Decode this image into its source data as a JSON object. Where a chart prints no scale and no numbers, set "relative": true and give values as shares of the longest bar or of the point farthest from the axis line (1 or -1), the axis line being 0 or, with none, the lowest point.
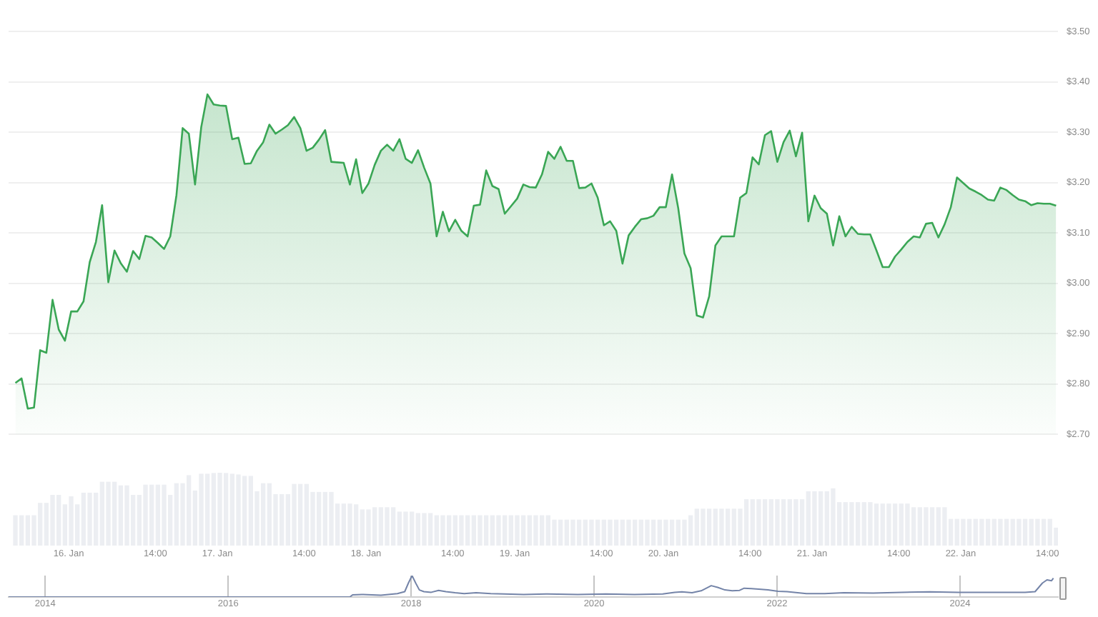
{
  "chart_data": [
    {
      "type": "area",
      "color": "#3aa655",
      "x": [
        "--01-15T15:24",
        "--01-15T16:24",
        "--01-15T17:24",
        "--01-15T18:24",
        "--01-15T19:24",
        "--01-15T20:24",
        "--01-15T21:24",
        "--01-15T22:24",
        "--01-15T23:24",
        "--01-16T00:24",
        "--01-16T01:24",
        "--01-16T02:24",
        "--01-16T03:24",
        "--01-16T04:24",
        "--01-16T05:24",
        "--01-16T06:24",
        "--01-16T07:24",
        "--01-16T08:24",
        "--01-16T09:24",
        "--01-16T10:24",
        "--01-16T11:24",
        "--01-16T12:24",
        "--01-16T13:24",
        "--01-16T14:24",
        "--01-16T15:24",
        "--01-16T16:24",
        "--01-16T17:24",
        "--01-16T18:24",
        "--01-16T19:24",
        "--01-16T20:24",
        "--01-16T21:24",
        "--01-16T22:24",
        "--01-16T23:24",
        "--01-17T00:24",
        "--01-17T01:24",
        "--01-17T02:24",
        "--01-17T03:24",
        "--01-17T04:24",
        "--01-17T05:24",
        "--01-17T06:24",
        "--01-17T07:24",
        "--01-17T08:24",
        "--01-17T09:24",
        "--01-17T10:24",
        "--01-17T11:24",
        "--01-17T12:24",
        "--01-17T13:24",
        "--01-17T14:24",
        "--01-17T15:24",
        "--01-17T16:24",
        "--01-17T17:24",
        "--01-17T18:24",
        "--01-17T19:24",
        "--01-17T20:24",
        "--01-17T21:24",
        "--01-17T22:24",
        "--01-17T23:24",
        "--01-18T00:24",
        "--01-18T01:24",
        "--01-18T02:24",
        "--01-18T03:24",
        "--01-18T04:24",
        "--01-18T05:24",
        "--01-18T06:24",
        "--01-18T07:24",
        "--01-18T08:24",
        "--01-18T09:24",
        "--01-18T10:24",
        "--01-18T11:24",
        "--01-18T12:24",
        "--01-18T13:24",
        "--01-18T14:24",
        "--01-18T15:24",
        "--01-18T16:24",
        "--01-18T17:24",
        "--01-18T18:24",
        "--01-18T19:24",
        "--01-18T20:24",
        "--01-18T21:24",
        "--01-18T22:24",
        "--01-18T23:24",
        "--01-19T00:24",
        "--01-19T01:24",
        "--01-19T02:24",
        "--01-19T03:24",
        "--01-19T04:24",
        "--01-19T05:24",
        "--01-19T06:24",
        "--01-19T07:24",
        "--01-19T08:24",
        "--01-19T09:24",
        "--01-19T10:24",
        "--01-19T11:24",
        "--01-19T12:24",
        "--01-19T13:24",
        "--01-19T14:24",
        "--01-19T15:24",
        "--01-19T16:24",
        "--01-19T17:24",
        "--01-19T18:24",
        "--01-19T19:24",
        "--01-19T20:24",
        "--01-19T21:24",
        "--01-19T22:24",
        "--01-19T23:24",
        "--01-20T00:24",
        "--01-20T01:24",
        "--01-20T02:24",
        "--01-20T03:24",
        "--01-20T04:24",
        "--01-20T05:24",
        "--01-20T06:24",
        "--01-20T07:24",
        "--01-20T08:24",
        "--01-20T09:24",
        "--01-20T10:24",
        "--01-20T11:24",
        "--01-20T12:24",
        "--01-20T13:24",
        "--01-20T14:24",
        "--01-20T15:24",
        "--01-20T16:24",
        "--01-20T17:24",
        "--01-20T18:24",
        "--01-20T19:24",
        "--01-20T20:24",
        "--01-20T21:24",
        "--01-20T22:24",
        "--01-20T23:24",
        "--01-21T00:24",
        "--01-21T01:24",
        "--01-21T02:24",
        "--01-21T03:24",
        "--01-21T04:24",
        "--01-21T05:24",
        "--01-21T06:24",
        "--01-21T07:24",
        "--01-21T08:24",
        "--01-21T09:24",
        "--01-21T10:24",
        "--01-21T11:24",
        "--01-21T12:24",
        "--01-21T13:24",
        "--01-21T14:24",
        "--01-21T15:24",
        "--01-21T16:24",
        "--01-21T17:24",
        "--01-21T18:24",
        "--01-21T19:24",
        "--01-21T20:24",
        "--01-21T21:24",
        "--01-21T22:24",
        "--01-21T23:24",
        "--01-22T00:24",
        "--01-22T01:24",
        "--01-22T02:24",
        "--01-22T03:24",
        "--01-22T04:24",
        "--01-22T05:24",
        "--01-22T06:24",
        "--01-22T07:24",
        "--01-22T08:24",
        "--01-22T09:24",
        "--01-22T10:24",
        "--01-22T11:24",
        "--01-22T12:24",
        "--01-22T13:24",
        "--01-22T14:24",
        "--01-22T15:24"
      ],
      "values": [
        2.802,
        2.811,
        2.751,
        2.753,
        2.867,
        2.862,
        2.967,
        2.908,
        2.886,
        2.944,
        2.944,
        2.964,
        3.042,
        3.082,
        3.155,
        3.002,
        3.065,
        3.04,
        3.023,
        3.064,
        3.048,
        3.094,
        3.091,
        3.08,
        3.068,
        3.093,
        3.175,
        3.308,
        3.297,
        3.196,
        3.31,
        3.375,
        3.355,
        3.353,
        3.352,
        3.286,
        3.289,
        3.237,
        3.238,
        3.263,
        3.28,
        3.315,
        3.297,
        3.305,
        3.314,
        3.33,
        3.308,
        3.263,
        3.269,
        3.285,
        3.304,
        3.241,
        3.24,
        3.239,
        3.196,
        3.246,
        3.179,
        3.198,
        3.235,
        3.263,
        3.275,
        3.263,
        3.286,
        3.247,
        3.239,
        3.264,
        3.229,
        3.198,
        3.093,
        3.142,
        3.103,
        3.126,
        3.104,
        3.093,
        3.154,
        3.156,
        3.224,
        3.193,
        3.187,
        3.138,
        3.153,
        3.168,
        3.196,
        3.191,
        3.19,
        3.216,
        3.261,
        3.247,
        3.271,
        3.243,
        3.243,
        3.189,
        3.19,
        3.198,
        3.17,
        3.115,
        3.123,
        3.104,
        3.039,
        3.095,
        3.112,
        3.127,
        3.129,
        3.134,
        3.151,
        3.151,
        3.216,
        3.149,
        3.059,
        3.03,
        2.936,
        2.932,
        2.974,
        3.075,
        3.093,
        3.093,
        3.093,
        3.17,
        3.179,
        3.25,
        3.236,
        3.294,
        3.302,
        3.241,
        3.28,
        3.303,
        3.252,
        3.299,
        3.123,
        3.174,
        3.149,
        3.138,
        3.075,
        3.133,
        3.093,
        3.112,
        3.098,
        3.097,
        3.097,
        3.065,
        3.032,
        3.032,
        3.053,
        3.067,
        3.082,
        3.093,
        3.091,
        3.118,
        3.12,
        3.091,
        3.117,
        3.151,
        3.21,
        3.199,
        3.188,
        3.182,
        3.175,
        3.166,
        3.164,
        3.19,
        3.185,
        3.175,
        3.166,
        3.163,
        3.155,
        3.159,
        3.158,
        3.158,
        3.154
      ],
      "xlim": [
        "--01-15T14:18",
        "--01-22T15:42"
      ],
      "ylim": [
        2.7,
        3.5
      ],
      "yticks": [
        {
          "value": 2.7,
          "label": "$2.70"
        },
        {
          "value": 2.8,
          "label": "$2.80"
        },
        {
          "value": 2.9,
          "label": "$2.90"
        },
        {
          "value": 3.0,
          "label": "$3.00"
        },
        {
          "value": 3.1,
          "label": "$3.10"
        },
        {
          "value": 3.2,
          "label": "$3.20"
        },
        {
          "value": 3.3,
          "label": "$3.30"
        },
        {
          "value": 3.4,
          "label": "$3.40"
        },
        {
          "value": 3.5,
          "label": "$3.50"
        }
      ],
      "grid": "y",
      "tick_labels": "y"
    },
    {
      "type": "bar",
      "relative": true,
      "color": "#eceef2",
      "x": [
        "--01-15T15:24",
        "--01-15T16:24",
        "--01-15T17:24",
        "--01-15T18:24",
        "--01-15T19:24",
        "--01-15T20:24",
        "--01-15T21:24",
        "--01-15T22:24",
        "--01-15T23:24",
        "--01-16T00:24",
        "--01-16T01:24",
        "--01-16T02:24",
        "--01-16T03:24",
        "--01-16T04:24",
        "--01-16T05:24",
        "--01-16T06:24",
        "--01-16T07:24",
        "--01-16T08:24",
        "--01-16T09:24",
        "--01-16T10:24",
        "--01-16T11:24",
        "--01-16T12:24",
        "--01-16T13:24",
        "--01-16T14:24",
        "--01-16T15:24",
        "--01-16T16:24",
        "--01-16T17:24",
        "--01-16T18:24",
        "--01-16T19:24",
        "--01-16T20:24",
        "--01-16T21:24",
        "--01-16T22:24",
        "--01-16T23:24",
        "--01-17T00:24",
        "--01-17T01:24",
        "--01-17T02:24",
        "--01-17T03:24",
        "--01-17T04:24",
        "--01-17T05:24",
        "--01-17T06:24",
        "--01-17T07:24",
        "--01-17T08:24",
        "--01-17T09:24",
        "--01-17T10:24",
        "--01-17T11:24",
        "--01-17T12:24",
        "--01-17T13:24",
        "--01-17T14:24",
        "--01-17T15:24",
        "--01-17T16:24",
        "--01-17T17:24",
        "--01-17T18:24",
        "--01-17T19:24",
        "--01-17T20:24",
        "--01-17T21:24",
        "--01-17T22:24",
        "--01-17T23:24",
        "--01-18T00:24",
        "--01-18T01:24",
        "--01-18T02:24",
        "--01-18T03:24",
        "--01-18T04:24",
        "--01-18T05:24",
        "--01-18T06:24",
        "--01-18T07:24",
        "--01-18T08:24",
        "--01-18T09:24",
        "--01-18T10:24",
        "--01-18T11:24",
        "--01-18T12:24",
        "--01-18T13:24",
        "--01-18T14:24",
        "--01-18T15:24",
        "--01-18T16:24",
        "--01-18T17:24",
        "--01-18T18:24",
        "--01-18T19:24",
        "--01-18T20:24",
        "--01-18T21:24",
        "--01-18T22:24",
        "--01-18T23:24",
        "--01-19T00:24",
        "--01-19T01:24",
        "--01-19T02:24",
        "--01-19T03:24",
        "--01-19T04:24",
        "--01-19T05:24",
        "--01-19T06:24",
        "--01-19T07:24",
        "--01-19T08:24",
        "--01-19T09:24",
        "--01-19T10:24",
        "--01-19T11:24",
        "--01-19T12:24",
        "--01-19T13:24",
        "--01-19T14:24",
        "--01-19T15:24",
        "--01-19T16:24",
        "--01-19T17:24",
        "--01-19T18:24",
        "--01-19T19:24",
        "--01-19T20:24",
        "--01-19T21:24",
        "--01-19T22:24",
        "--01-19T23:24",
        "--01-20T00:24",
        "--01-20T01:24",
        "--01-20T02:24",
        "--01-20T03:24",
        "--01-20T04:24",
        "--01-20T05:24",
        "--01-20T06:24",
        "--01-20T07:24",
        "--01-20T08:24",
        "--01-20T09:24",
        "--01-20T10:24",
        "--01-20T11:24",
        "--01-20T12:24",
        "--01-20T13:24",
        "--01-20T14:24",
        "--01-20T15:24",
        "--01-20T16:24",
        "--01-20T17:24",
        "--01-20T18:24",
        "--01-20T19:24",
        "--01-20T20:24",
        "--01-20T21:24",
        "--01-20T22:24",
        "--01-20T23:24",
        "--01-21T00:24",
        "--01-21T01:24",
        "--01-21T02:24",
        "--01-21T03:24",
        "--01-21T04:24",
        "--01-21T05:24",
        "--01-21T06:24",
        "--01-21T07:24",
        "--01-21T08:24",
        "--01-21T09:24",
        "--01-21T10:24",
        "--01-21T11:24",
        "--01-21T12:24",
        "--01-21T13:24",
        "--01-21T14:24",
        "--01-21T15:24",
        "--01-21T16:24",
        "--01-21T17:24",
        "--01-21T18:24",
        "--01-21T19:24",
        "--01-21T20:24",
        "--01-21T21:24",
        "--01-21T22:24",
        "--01-21T23:24",
        "--01-22T00:24",
        "--01-22T01:24",
        "--01-22T02:24",
        "--01-22T03:24",
        "--01-22T04:24",
        "--01-22T05:24",
        "--01-22T06:24",
        "--01-22T07:24",
        "--01-22T08:24",
        "--01-22T09:24",
        "--01-22T10:24",
        "--01-22T11:24",
        "--01-22T12:24",
        "--01-22T13:24",
        "--01-22T14:24",
        "--01-22T15:24"
      ],
      "values": [
        0.41,
        0.41,
        0.41,
        0.41,
        0.58,
        0.58,
        0.69,
        0.69,
        0.56,
        0.67,
        0.56,
        0.72,
        0.72,
        0.72,
        0.87,
        0.87,
        0.87,
        0.82,
        0.82,
        0.69,
        0.69,
        0.83,
        0.83,
        0.83,
        0.83,
        0.69,
        0.85,
        0.85,
        0.96,
        0.75,
        0.98,
        0.98,
        0.99,
        1,
        0.99,
        0.98,
        0.97,
        0.95,
        0.95,
        0.74,
        0.85,
        0.85,
        0.7,
        0.7,
        0.7,
        0.84,
        0.84,
        0.84,
        0.73,
        0.73,
        0.73,
        0.73,
        0.57,
        0.57,
        0.57,
        0.56,
        0.49,
        0.49,
        0.52,
        0.52,
        0.52,
        0.52,
        0.46,
        0.46,
        0.46,
        0.44,
        0.44,
        0.44,
        0.41,
        0.41,
        0.41,
        0.41,
        0.41,
        0.41,
        0.41,
        0.41,
        0.41,
        0.41,
        0.41,
        0.41,
        0.41,
        0.41,
        0.41,
        0.41,
        0.41,
        0.41,
        0.41,
        0.35,
        0.35,
        0.35,
        0.35,
        0.35,
        0.35,
        0.35,
        0.35,
        0.35,
        0.35,
        0.35,
        0.35,
        0.35,
        0.35,
        0.35,
        0.35,
        0.35,
        0.35,
        0.35,
        0.35,
        0.35,
        0.35,
        0.41,
        0.5,
        0.5,
        0.5,
        0.5,
        0.5,
        0.5,
        0.5,
        0.5,
        0.63,
        0.63,
        0.63,
        0.63,
        0.63,
        0.63,
        0.63,
        0.63,
        0.63,
        0.63,
        0.74,
        0.74,
        0.74,
        0.74,
        0.78,
        0.59,
        0.59,
        0.59,
        0.59,
        0.59,
        0.59,
        0.57,
        0.57,
        0.57,
        0.57,
        0.57,
        0.57,
        0.52,
        0.52,
        0.52,
        0.52,
        0.52,
        0.52,
        0.36,
        0.36,
        0.36,
        0.36,
        0.36,
        0.36,
        0.36,
        0.36,
        0.36,
        0.36,
        0.36,
        0.36,
        0.36,
        0.36,
        0.36,
        0.36,
        0.36,
        0.24
      ],
      "xlim": [
        "--01-15T14:18",
        "--01-22T15:42"
      ],
      "xticks": [
        {
          "value": "--01-16T00:00",
          "label": "16. Jan"
        },
        {
          "value": "--01-16T14:00",
          "label": "14:00"
        },
        {
          "value": "--01-17T00:00",
          "label": "17. Jan"
        },
        {
          "value": "--01-17T14:00",
          "label": "14:00"
        },
        {
          "value": "--01-18T00:00",
          "label": "18. Jan"
        },
        {
          "value": "--01-18T14:00",
          "label": "14:00"
        },
        {
          "value": "--01-19T00:00",
          "label": "19. Jan"
        },
        {
          "value": "--01-19T14:00",
          "label": "14:00"
        },
        {
          "value": "--01-20T00:00",
          "label": "20. Jan"
        },
        {
          "value": "--01-20T14:00",
          "label": "14:00"
        },
        {
          "value": "--01-21T00:00",
          "label": "21. Jan"
        },
        {
          "value": "--01-21T14:00",
          "label": "14:00"
        },
        {
          "value": "--01-22T00:00",
          "label": "22. Jan"
        },
        {
          "value": "--01-22T14:00",
          "label": "14:00"
        }
      ],
      "tick_labels": "x"
    },
    {
      "type": "line",
      "relative": true,
      "color": "#7484a8",
      "x": [
        2013.6,
        2017.33,
        2017.36,
        2017.46,
        2017.67,
        2017.85,
        2017.93,
        2017.97,
        2018.01,
        2018.05,
        2018.09,
        2018.14,
        2018.22,
        2018.3,
        2018.38,
        2018.48,
        2018.58,
        2018.71,
        2018.87,
        2019.02,
        2019.23,
        2019.49,
        2019.82,
        2020.13,
        2020.44,
        2020.75,
        2020.88,
        2020.96,
        2021.07,
        2021.17,
        2021.28,
        2021.35,
        2021.43,
        2021.51,
        2021.59,
        2021.64,
        2021.72,
        2021.8,
        2021.9,
        2022.01,
        2022.11,
        2022.32,
        2022.52,
        2022.73,
        2023.05,
        2023.36,
        2023.67,
        2023.98,
        2024.4,
        2024.71,
        2024.82,
        2024.9,
        2024.95,
        2025.0,
        2025.02
      ],
      "values": [
        0,
        0,
        0.1,
        0.12,
        0.08,
        0.16,
        0.25,
        0.65,
        1,
        0.65,
        0.33,
        0.25,
        0.22,
        0.31,
        0.25,
        0.2,
        0.16,
        0.2,
        0.16,
        0.14,
        0.12,
        0.14,
        0.12,
        0.14,
        0.12,
        0.14,
        0.22,
        0.24,
        0.2,
        0.29,
        0.53,
        0.45,
        0.33,
        0.29,
        0.31,
        0.41,
        0.39,
        0.37,
        0.33,
        0.27,
        0.25,
        0.16,
        0.16,
        0.2,
        0.18,
        0.22,
        0.24,
        0.22,
        0.22,
        0.22,
        0.25,
        0.65,
        0.8,
        0.76,
        0.88
      ],
      "xlim": [
        2013.6,
        2025.07
      ],
      "xticks": [
        2014,
        2016,
        2018,
        2020,
        2022,
        2024
      ],
      "grid": "x",
      "tick_labels": "x"
    }
  ]
}
